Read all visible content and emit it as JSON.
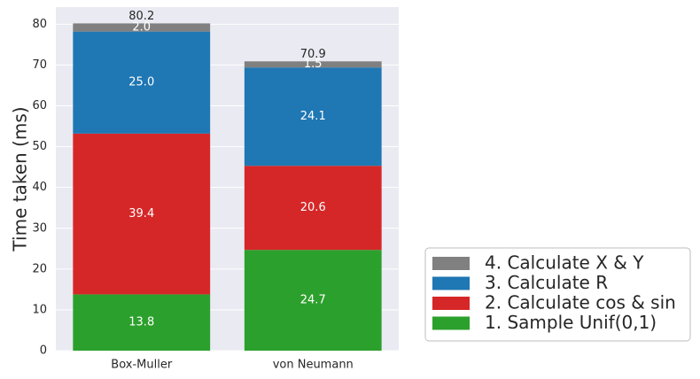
{
  "chart_data": {
    "type": "bar",
    "stacked": true,
    "categories": [
      "Box-Muller",
      "von Neumann"
    ],
    "series": [
      {
        "name": "1. Sample Unif(0,1)",
        "color": "#2ca02c",
        "values": [
          13.8,
          24.7
        ]
      },
      {
        "name": "2. Calculate cos & sin",
        "color": "#d62728",
        "values": [
          39.4,
          20.6
        ]
      },
      {
        "name": "3. Calculate R",
        "color": "#1f77b4",
        "values": [
          25.0,
          24.1
        ]
      },
      {
        "name": "4. Calculate X & Y",
        "color": "#808080",
        "values": [
          2.0,
          1.5
        ]
      }
    ],
    "segment_labels": [
      [
        "13.8",
        "39.4",
        "25.0",
        "2.0"
      ],
      [
        "24.7",
        "20.6",
        "24.1",
        "1.5"
      ]
    ],
    "totals": [
      "80.2",
      "70.9"
    ],
    "ylabel": "Time taken (ms)",
    "ylim": [
      0,
      84.2
    ],
    "yticks": [
      "0",
      "10",
      "20",
      "30",
      "40",
      "50",
      "60",
      "70",
      "80"
    ],
    "grid": true,
    "legend_placement": "bottom-right outside",
    "background_color": "#eaeaf2"
  }
}
